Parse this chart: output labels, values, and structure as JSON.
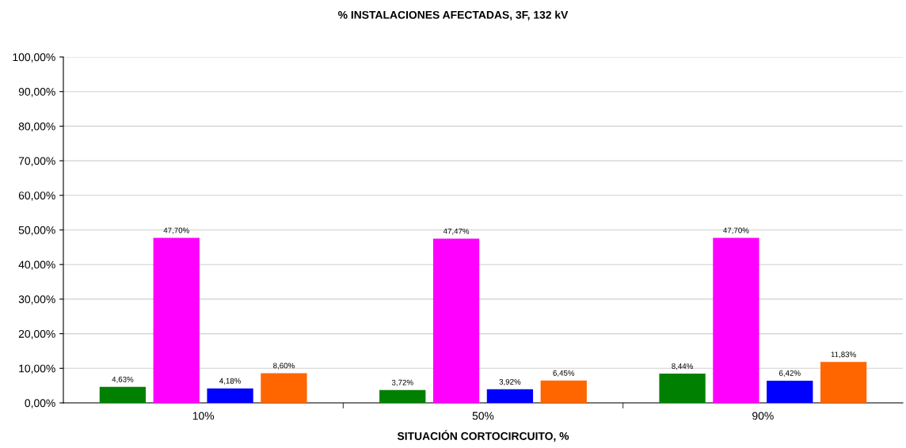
{
  "chart_data": {
    "type": "bar",
    "title": "% INSTALACIONES AFECTADAS, 3F, 132 kV",
    "xlabel": "SITUACIÓN CORTOCIRCUITO, %",
    "categories": [
      "10%",
      "50%",
      "90%"
    ],
    "series": [
      {
        "color": "#008000",
        "values": [
          4.63,
          3.72,
          8.44
        ],
        "value_labels": [
          "4,63%",
          "3,72%",
          "8,44%"
        ]
      },
      {
        "color": "#ff00ff",
        "values": [
          47.7,
          47.47,
          47.7
        ],
        "value_labels": [
          "47,70%",
          "47,47%",
          "47,70%"
        ]
      },
      {
        "color": "#0000ff",
        "values": [
          4.18,
          3.92,
          6.42
        ],
        "value_labels": [
          "4,18%",
          "3,92%",
          "6,42%"
        ]
      },
      {
        "color": "#ff6600",
        "values": [
          8.6,
          6.45,
          11.83
        ],
        "value_labels": [
          "8,60%",
          "6,45%",
          "11,83%"
        ]
      }
    ],
    "ylim": [
      0,
      100
    ],
    "yticks": [
      {
        "value": 0,
        "label": "0,00%"
      },
      {
        "value": 10,
        "label": "10,00%"
      },
      {
        "value": 20,
        "label": "20,00%"
      },
      {
        "value": 30,
        "label": "30,00%"
      },
      {
        "value": 40,
        "label": "40,00%"
      },
      {
        "value": 50,
        "label": "50,00%"
      },
      {
        "value": 60,
        "label": "60,00%"
      },
      {
        "value": 70,
        "label": "70,00%"
      },
      {
        "value": 80,
        "label": "80,00%"
      },
      {
        "value": 90,
        "label": "90,00%"
      },
      {
        "value": 100,
        "label": "100,00%"
      }
    ],
    "grid": "y",
    "legend": false
  }
}
